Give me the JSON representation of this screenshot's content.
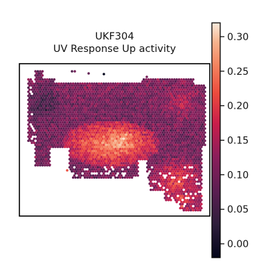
{
  "chart_data": {
    "type": "heatmap",
    "subtype": "spatial-spot-scatter",
    "title_lines": [
      "UKF304",
      "UV Response Up activity"
    ],
    "xlabel": "",
    "ylabel": "",
    "colorbar": {
      "colormap": "rocket",
      "range": [
        -0.02,
        0.32
      ],
      "ticks": [
        0.0,
        0.05,
        0.1,
        0.15,
        0.2,
        0.25,
        0.3
      ],
      "tick_labels": [
        "0.00",
        "0.05",
        "0.10",
        "0.15",
        "0.20",
        "0.25",
        "0.30"
      ],
      "placement": "right"
    },
    "grid": false,
    "regions": [
      {
        "name": "tissue-top-left-low",
        "activity": 0.06
      },
      {
        "name": "tissue-upper-band",
        "activity": 0.11
      },
      {
        "name": "tissue-center-high",
        "activity": 0.25
      },
      {
        "name": "tissue-right-lobe-high",
        "activity": 0.22
      },
      {
        "name": "tissue-top-right-mid",
        "activity": 0.16
      }
    ]
  },
  "colors": {
    "background": "#ffffff",
    "axes_frame": "#000000",
    "text": "#111111"
  }
}
